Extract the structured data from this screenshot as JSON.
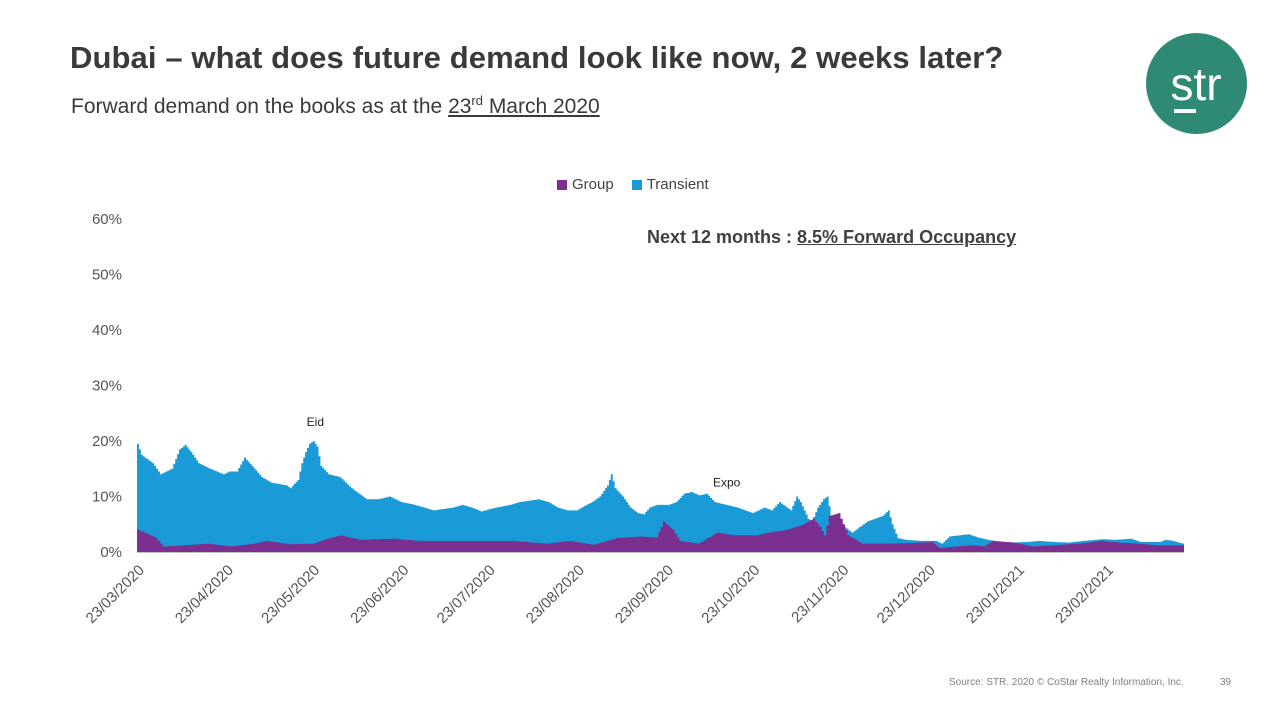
{
  "header": {
    "title": "Dubai – what does future demand look like now, 2 weeks later?",
    "subtitle_prefix": "Forward demand on the books as at the ",
    "subtitle_day": "23",
    "subtitle_sup": "rd",
    "subtitle_rest": " March 2020"
  },
  "logo": {
    "text": "str",
    "color": "#2e8a74"
  },
  "callout": {
    "prefix": "Next 12 months : ",
    "highlight": "8.5% Forward Occupancy"
  },
  "footer": {
    "source": "Source: STR. 2020 © CoStar Realty Information, Inc.",
    "page_number": "39"
  },
  "colors": {
    "group": "#7b2f8e",
    "transient": "#1a9ad6"
  },
  "chart_data": {
    "type": "area",
    "stacked": true,
    "title": "",
    "xlabel": "",
    "ylabel": "",
    "ylim": [
      0,
      60
    ],
    "y_ticks": [
      "0%",
      "10%",
      "20%",
      "30%",
      "40%",
      "50%",
      "60%"
    ],
    "x_tick_labels": [
      "23/03/2020",
      "23/04/2020",
      "23/05/2020",
      "23/06/2020",
      "23/07/2020",
      "23/08/2020",
      "23/09/2020",
      "23/10/2020",
      "23/11/2020",
      "23/12/2020",
      "23/01/2021",
      "23/02/2021"
    ],
    "legend": [
      "Group",
      "Transient"
    ],
    "legend_position": "top-center",
    "x_start": "2020-03-23",
    "x_end": "2021-03-22",
    "annotations": [
      {
        "text": "Eid",
        "day_index": 62
      },
      {
        "text": "Expo",
        "day_index": 205
      }
    ],
    "group_keypoints": [
      [
        0,
        4.0
      ],
      [
        3,
        3.5
      ],
      [
        8,
        2.5
      ],
      [
        11,
        1.0
      ],
      [
        20,
        1.2
      ],
      [
        30,
        1.5
      ],
      [
        40,
        1.0
      ],
      [
        50,
        1.5
      ],
      [
        55,
        2.0
      ],
      [
        65,
        1.4
      ],
      [
        75,
        1.5
      ],
      [
        82,
        2.5
      ],
      [
        87,
        3.0
      ],
      [
        95,
        2.2
      ],
      [
        110,
        2.4
      ],
      [
        120,
        2.0
      ],
      [
        140,
        2.0
      ],
      [
        160,
        2.0
      ],
      [
        175,
        1.5
      ],
      [
        185,
        2.0
      ],
      [
        195,
        1.3
      ],
      [
        205,
        2.5
      ],
      [
        215,
        2.8
      ],
      [
        222,
        2.6
      ],
      [
        225,
        5.5
      ],
      [
        229,
        4.0
      ],
      [
        232,
        2.0
      ],
      [
        240,
        1.5
      ],
      [
        248,
        3.5
      ],
      [
        255,
        3.0
      ],
      [
        265,
        3.0
      ],
      [
        270,
        3.5
      ],
      [
        278,
        4.0
      ],
      [
        285,
        5.0
      ],
      [
        289,
        6.0
      ],
      [
        292,
        4.5
      ],
      [
        294,
        3.0
      ],
      [
        296,
        6.5
      ],
      [
        300,
        7.0
      ],
      [
        304,
        3.0
      ],
      [
        310,
        1.5
      ],
      [
        320,
        1.5
      ],
      [
        330,
        1.6
      ],
      [
        340,
        1.8
      ],
      [
        343,
        0.7
      ],
      [
        350,
        1.0
      ],
      [
        358,
        1.2
      ],
      [
        362,
        1.0
      ],
      [
        366,
        2.0
      ],
      [
        375,
        1.7
      ],
      [
        383,
        1.0
      ],
      [
        395,
        1.3
      ],
      [
        405,
        1.6
      ],
      [
        412,
        2.0
      ],
      [
        420,
        1.7
      ],
      [
        428,
        1.5
      ],
      [
        436,
        1.2
      ],
      [
        447,
        1.2
      ]
    ],
    "total_keypoints": [
      [
        0,
        19.5
      ],
      [
        2,
        17.5
      ],
      [
        8,
        16.0
      ],
      [
        12,
        14.0
      ],
      [
        18,
        15.0
      ],
      [
        22,
        18.5
      ],
      [
        25,
        19.3
      ],
      [
        28,
        18.0
      ],
      [
        32,
        16.0
      ],
      [
        38,
        15.0
      ],
      [
        45,
        14.0
      ],
      [
        48,
        14.5
      ],
      [
        52,
        14.5
      ],
      [
        56,
        17.0
      ],
      [
        60,
        15.5
      ],
      [
        65,
        13.5
      ],
      [
        70,
        12.5
      ],
      [
        78,
        12.0
      ],
      [
        80,
        11.5
      ],
      [
        84,
        13.0
      ],
      [
        86,
        16.0
      ],
      [
        88,
        18.0
      ],
      [
        90,
        19.5
      ],
      [
        92,
        20.0
      ],
      [
        94,
        19.0
      ],
      [
        96,
        15.5
      ],
      [
        100,
        14.0
      ],
      [
        106,
        13.5
      ],
      [
        112,
        11.5
      ],
      [
        116,
        10.5
      ],
      [
        120,
        9.5
      ],
      [
        126,
        9.5
      ],
      [
        132,
        10.0
      ],
      [
        138,
        9.0
      ],
      [
        145,
        8.5
      ],
      [
        155,
        7.5
      ],
      [
        165,
        8.0
      ],
      [
        170,
        8.5
      ],
      [
        175,
        8.0
      ],
      [
        180,
        7.3
      ],
      [
        185,
        7.8
      ],
      [
        195,
        8.5
      ],
      [
        200,
        9.0
      ],
      [
        210,
        9.5
      ],
      [
        215,
        9.0
      ],
      [
        220,
        8.0
      ],
      [
        225,
        7.5
      ],
      [
        230,
        7.5
      ],
      [
        235,
        8.5
      ],
      [
        238,
        9.0
      ],
      [
        242,
        10.0
      ],
      [
        246,
        12.0
      ],
      [
        248,
        14.0
      ],
      [
        250,
        11.5
      ],
      [
        254,
        10.0
      ],
      [
        258,
        8.0
      ],
      [
        262,
        7.0
      ],
      [
        265,
        6.8
      ],
      [
        268,
        8.0
      ],
      [
        272,
        8.5
      ],
      [
        278,
        8.5
      ],
      [
        282,
        9.0
      ],
      [
        286,
        10.5
      ],
      [
        290,
        10.8
      ],
      [
        294,
        10.2
      ],
      [
        298,
        10.5
      ],
      [
        302,
        9.0
      ],
      [
        308,
        8.5
      ],
      [
        314,
        8.0
      ],
      [
        318,
        7.5
      ],
      [
        322,
        7.0
      ],
      [
        328,
        8.0
      ],
      [
        332,
        7.5
      ],
      [
        336,
        9.0
      ],
      [
        340,
        8.0
      ],
      [
        342,
        7.5
      ],
      [
        345,
        10.0
      ],
      [
        347,
        9.0
      ],
      [
        351,
        6.0
      ],
      [
        353,
        5.5
      ],
      [
        356,
        8.0
      ],
      [
        359,
        9.5
      ],
      [
        361,
        10.0
      ],
      [
        363,
        6.5
      ],
      [
        366,
        5.0
      ],
      [
        370,
        4.5
      ],
      [
        374,
        3.5
      ],
      [
        378,
        4.5
      ],
      [
        382,
        5.5
      ],
      [
        386,
        6.0
      ],
      [
        390,
        6.5
      ],
      [
        393,
        7.5
      ],
      [
        395,
        5.0
      ],
      [
        398,
        2.5
      ],
      [
        402,
        2.2
      ],
      [
        410,
        2.0
      ],
      [
        418,
        2.0
      ],
      [
        421,
        1.5
      ],
      [
        425,
        2.8
      ],
      [
        430,
        3.0
      ],
      [
        435,
        3.2
      ],
      [
        440,
        2.6
      ],
      [
        445,
        2.2
      ],
      [
        450,
        1.9
      ],
      [
        458,
        1.7
      ],
      [
        465,
        1.8
      ],
      [
        472,
        2.0
      ],
      [
        480,
        1.8
      ],
      [
        487,
        1.7
      ],
      [
        495,
        2.0
      ],
      [
        505,
        2.3
      ],
      [
        512,
        2.2
      ],
      [
        520,
        2.4
      ],
      [
        525,
        1.8
      ],
      [
        535,
        1.8
      ],
      [
        538,
        2.2
      ],
      [
        542,
        2.0
      ],
      [
        546,
        1.6
      ],
      [
        547,
        1.5
      ]
    ],
    "total_series_length": 548,
    "group_series_length": 448
  }
}
